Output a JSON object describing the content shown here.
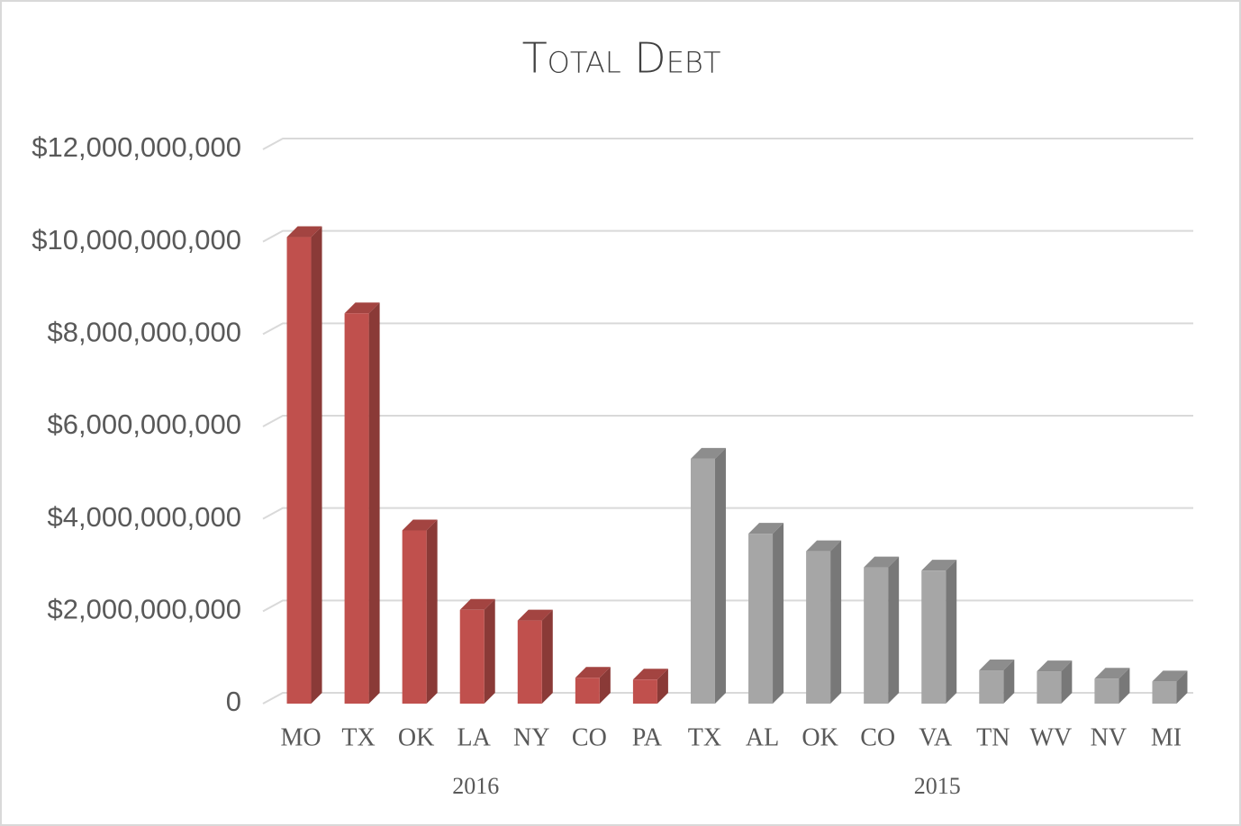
{
  "chart_data": {
    "type": "bar3d",
    "title": "Total Debt",
    "groups": [
      {
        "name": "2016",
        "color": "#c0504d",
        "categories": [
          "MO",
          "TX",
          "OK",
          "LA",
          "NY",
          "CO",
          "PA"
        ],
        "values": [
          10100000000,
          8450000000,
          3750000000,
          2030000000,
          1800000000,
          560000000,
          520000000
        ]
      },
      {
        "name": "2015",
        "color": "#a6a6a6",
        "categories": [
          "TX",
          "AL",
          "OK",
          "CO",
          "VA",
          "TN",
          "WV",
          "NV",
          "MI"
        ],
        "values": [
          5300000000,
          3680000000,
          3300000000,
          2950000000,
          2880000000,
          720000000,
          700000000,
          540000000,
          480000000
        ]
      }
    ],
    "ylim": [
      0,
      12000000000
    ],
    "yticks": [
      0,
      {
        "value": 2000000000,
        "label": "$2,000,000,000"
      },
      {
        "value": 4000000000,
        "label": "$4,000,000,000"
      },
      {
        "value": 6000000000,
        "label": "$6,000,000,000"
      },
      {
        "value": 8000000000,
        "label": "$8,000,000,000"
      },
      {
        "value": 10000000000,
        "label": "$10,000,000,000"
      },
      {
        "value": 12000000000,
        "label": "$12,000,000,000"
      }
    ],
    "grid": true
  }
}
